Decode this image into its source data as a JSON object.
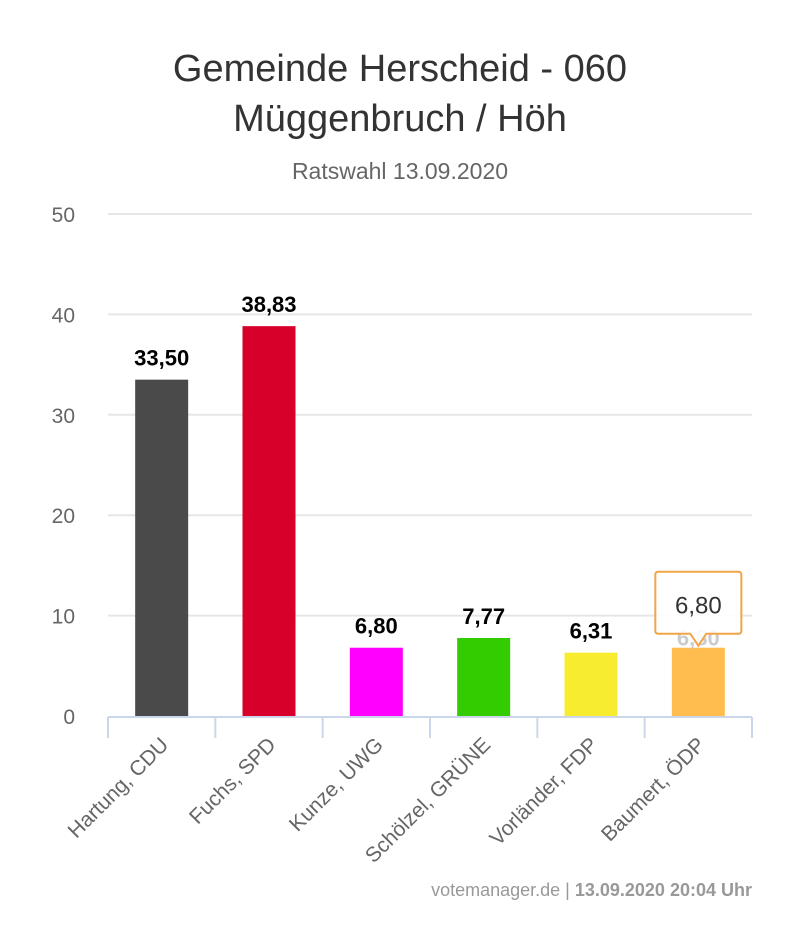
{
  "chart_data": {
    "type": "bar",
    "title": "Gemeinde Herscheid - 060",
    "title_line2": "Müggenbruch / Höh",
    "subtitle": "Ratswahl 13.09.2020",
    "categories": [
      "Hartung, CDU",
      "Fuchs, SPD",
      "Kunze, UWG",
      "Schölzel, GRÜNE",
      "Vorländer, FDP",
      "Baumert, ÖDP"
    ],
    "values": [
      33.5,
      38.83,
      6.8,
      7.77,
      6.31,
      6.8
    ],
    "value_labels": [
      "33,50",
      "38,83",
      "6,80",
      "7,77",
      "6,31",
      "6,80"
    ],
    "colors": [
      "#4a4a4a",
      "#d6002a",
      "#ff00ff",
      "#33cc00",
      "#f7ec30",
      "#ffbc4f"
    ],
    "yticks": [
      0,
      10,
      20,
      30,
      40,
      50
    ],
    "ylim": [
      0,
      50
    ],
    "grid": true,
    "xlabel": "",
    "ylabel": "",
    "tooltip": {
      "category_index": 5,
      "text": "6,80"
    }
  },
  "credits": {
    "site": "votemanager.de",
    "separator": " | ",
    "timestamp": "13.09.2020 20:04 Uhr"
  }
}
